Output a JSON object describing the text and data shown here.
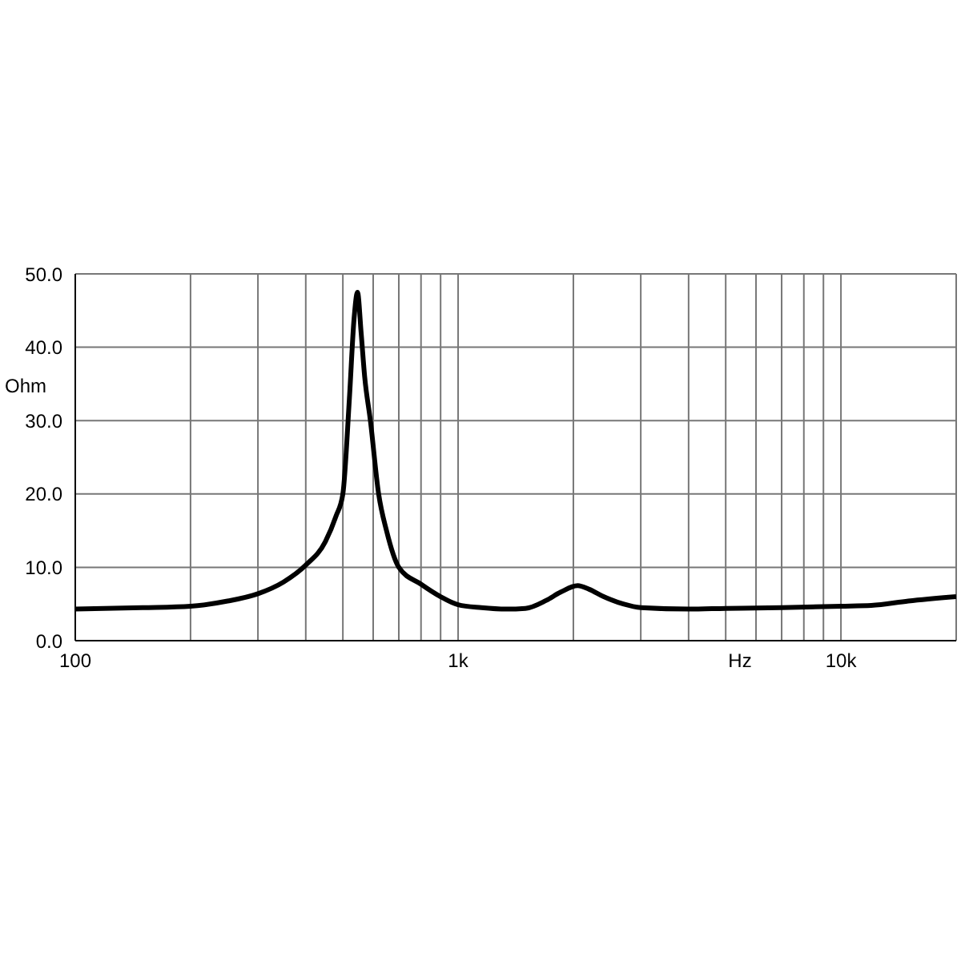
{
  "chart_data": {
    "type": "line",
    "xlabel": "Hz",
    "ylabel": "Ohm",
    "log": "x",
    "xlim": [
      100,
      20000
    ],
    "xticks": [
      {
        "value": 100,
        "label": "100"
      },
      {
        "value": 200,
        "label": null
      },
      {
        "value": 300,
        "label": null
      },
      {
        "value": 400,
        "label": null
      },
      {
        "value": 500,
        "label": null
      },
      {
        "value": 600,
        "label": null
      },
      {
        "value": 700,
        "label": null
      },
      {
        "value": 800,
        "label": null
      },
      {
        "value": 900,
        "label": null
      },
      {
        "value": 1000,
        "label": "1k"
      },
      {
        "value": 2000,
        "label": null
      },
      {
        "value": 3000,
        "label": null
      },
      {
        "value": 4000,
        "label": null
      },
      {
        "value": 5000,
        "label": null
      },
      {
        "value": 6000,
        "label": null
      },
      {
        "value": 7000,
        "label": null
      },
      {
        "value": 8000,
        "label": null
      },
      {
        "value": 9000,
        "label": null
      },
      {
        "value": 10000,
        "label": "10k"
      },
      {
        "value": 20000,
        "label": null
      }
    ],
    "ylim": [
      0,
      50
    ],
    "yticks": [
      {
        "value": 0,
        "label": "0.0"
      },
      {
        "value": 10,
        "label": "10.0"
      },
      {
        "value": 20,
        "label": "20.0"
      },
      {
        "value": 30,
        "label": "30.0"
      },
      {
        "value": 40,
        "label": "40.0"
      },
      {
        "value": 50,
        "label": "50.0"
      }
    ],
    "grid": true,
    "marker": "none",
    "line_style": "solid",
    "series": [
      {
        "color": "#000000",
        "x": [
          100,
          150,
          200,
          250,
          300,
          350,
          400,
          450,
          480,
          500,
          520,
          535,
          546,
          558,
          570,
          590,
          620,
          650,
          700,
          800,
          900,
          1000,
          1150,
          1334,
          1500,
          1700,
          1850,
          2053,
          2200,
          2400,
          2700,
          3000,
          4000,
          5000,
          7000,
          10000,
          12000,
          15000,
          20000
        ],
        "values": [
          4.3,
          4.5,
          4.7,
          5.4,
          6.4,
          8.0,
          10.3,
          13.5,
          17,
          20,
          33,
          44,
          47.5,
          42,
          36,
          30,
          20,
          15,
          10,
          7.7,
          6,
          4.9,
          4.5,
          4.3,
          4.4,
          5.5,
          6.6,
          7.5,
          7,
          6,
          5,
          4.5,
          4.3,
          4.4,
          4.5,
          4.7,
          4.8,
          5.4,
          6
        ]
      }
    ]
  }
}
